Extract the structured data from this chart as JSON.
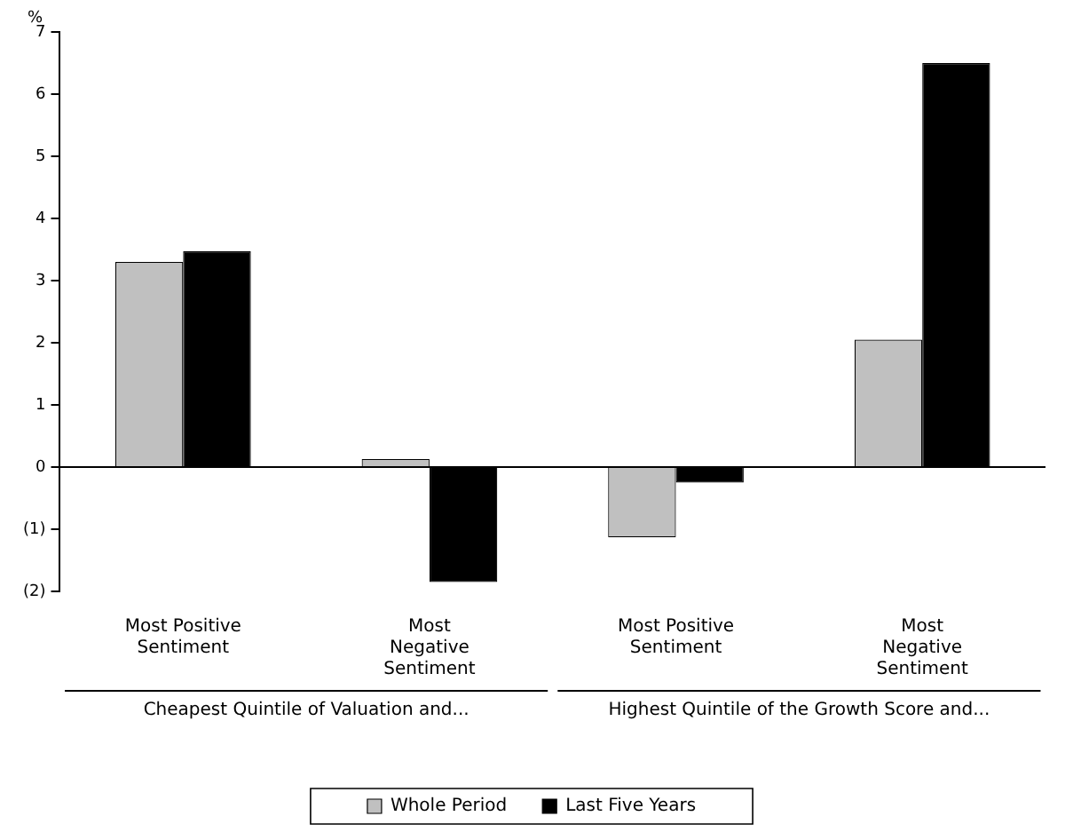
{
  "chart_data": {
    "type": "bar",
    "ylabel": "%",
    "categories": [
      "Most Positive Sentiment",
      "Most Negative Sentiment",
      "Most Positive Sentiment",
      "Most Negative Sentiment"
    ],
    "series": [
      {
        "name": "Whole Period",
        "color": "#c0c0c0",
        "values": [
          3.3,
          0.13,
          -1.13,
          2.05
        ]
      },
      {
        "name": "Last Five Years",
        "color": "#000000",
        "values": [
          3.47,
          -1.85,
          -0.25,
          6.5
        ]
      }
    ],
    "ylim": [
      -2,
      7
    ],
    "yticks": [
      {
        "value": -2,
        "label": "(2)"
      },
      {
        "value": -1,
        "label": "(1)"
      },
      0,
      1,
      2,
      3,
      4,
      5,
      6,
      7
    ],
    "annotations": [
      "Cheapest Quintile of Valuation and...",
      "Highest Quintile of the Growth Score and..."
    ],
    "legend": "bottom"
  }
}
